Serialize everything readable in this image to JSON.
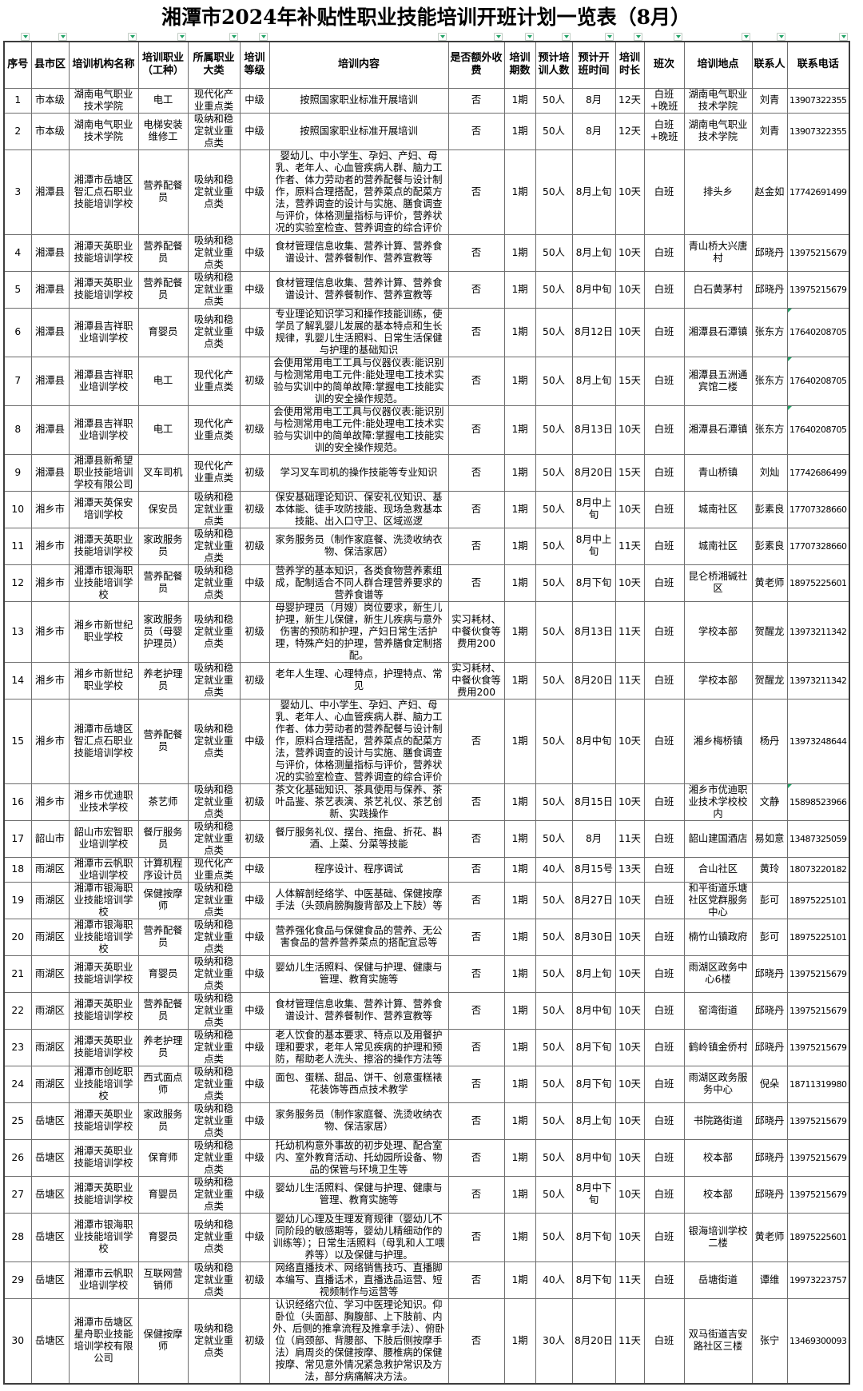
{
  "title": "湘潭市2024年补贴性职业技能培训开班计划一览表（8月）",
  "filter": {
    "icon": "filter-dropdown-arrow",
    "color": "#21a366"
  },
  "table": {
    "columns": [
      {
        "key": "seq",
        "label": "序号"
      },
      {
        "key": "district",
        "label": "县市区"
      },
      {
        "key": "institution",
        "label": "培训机构名称"
      },
      {
        "key": "occupation",
        "label": "培训职业（工种）"
      },
      {
        "key": "category",
        "label": "所属职业大类"
      },
      {
        "key": "level",
        "label": "培训等级"
      },
      {
        "key": "content",
        "label": "培训内容"
      },
      {
        "key": "extra_fee",
        "label": "是否额外收费"
      },
      {
        "key": "sessions",
        "label": "培训期数"
      },
      {
        "key": "trainees",
        "label": "预计培训人数"
      },
      {
        "key": "start_time",
        "label": "预计开班时间"
      },
      {
        "key": "duration",
        "label": "培训时长"
      },
      {
        "key": "shift",
        "label": "班次"
      },
      {
        "key": "location",
        "label": "培训地点"
      },
      {
        "key": "contact",
        "label": "联系人"
      },
      {
        "key": "phone",
        "label": "联系电话"
      }
    ],
    "phone_corner_indicator_rows": [
      "6",
      "7",
      "8",
      "16"
    ],
    "rows": [
      [
        "1",
        "市本级",
        "湖南电气职业技术学院",
        "电工",
        "现代化产业重点类",
        "中级",
        "按照国家职业标准开展培训",
        "否",
        "1期",
        "50人",
        "8月",
        "12天",
        "白班+晚班",
        "湖南电气职业技术学院",
        "刘青",
        "13907322355"
      ],
      [
        "2",
        "市本级",
        "湖南电气职业技术学院",
        "电梯安装维修工",
        "吸纳和稳定就业重点类",
        "中级",
        "按照国家职业标准开展培训",
        "否",
        "1期",
        "50人",
        "8月",
        "12天",
        "白班+晚班",
        "湖南电气职业技术学院",
        "刘青",
        "13907322355"
      ],
      [
        "3",
        "湘潭县",
        "湘潭市岳塘区智汇点石职业技能培训学校",
        "营养配餐员",
        "吸纳和稳定就业重点类",
        "中级",
        "婴幼儿、中小学生、孕妇、产妇、母乳、老年人、心血管疾病人群、脑力工作者、体力劳动者的营养配餐与设计制作，原料合理搭配，营养菜点的配菜方法，营养调查的设计与实施、膳食调查与评价，体格测量指标与评价，营养状况的实验室检查、营养调查的综合评价",
        "否",
        "1期",
        "50人",
        "8月上旬",
        "10天",
        "白班",
        "排头乡",
        "赵金如",
        "17742691499"
      ],
      [
        "4",
        "湘潭县",
        "湘潭天英职业技能培训学校",
        "营养配餐员",
        "吸纳和稳定就业重点类",
        "中级",
        "食材管理信息收集、营养计算、营养食谱设计、营养餐制作、营养宣教等",
        "否",
        "1期",
        "50人",
        "8月上旬",
        "10天",
        "白班",
        "青山桥大兴唐村",
        "邱晓丹",
        "13975215679"
      ],
      [
        "5",
        "湘潭县",
        "湘潭天英职业技能培训学校",
        "营养配餐员",
        "吸纳和稳定就业重点类",
        "中级",
        "食材管理信息收集、营养计算、营养食谱设计、营养餐制作、营养宣教等",
        "否",
        "1期",
        "50人",
        "8月中旬",
        "10天",
        "白班",
        "白石黄茅村",
        "邱晓丹",
        "13975215679"
      ],
      [
        "6",
        "湘潭县",
        "湘潭县吉祥职业培训学校",
        "育婴员",
        "吸纳和稳定就业重点类",
        "中级",
        "专业理论知识学习和操作技能训练，使学员了解乳婴儿发展的基本特点和生长规律，乳婴儿生活照料、日常生活保健与护理的基础知识",
        "否",
        "1期",
        "50人",
        "8月12日",
        "10天",
        "白班",
        "湘潭县石潭镇",
        "张东方",
        "17640208705"
      ],
      [
        "7",
        "湘潭县",
        "湘潭县吉祥职业培训学校",
        "电工",
        "现代化产业重点类",
        "初级",
        "会使用常用电工工具与仪器仪表:能识别与检测常用电工元件:能处理电工技术实验与实训中的简单故障:掌握电工技能实训的安全操作规范。",
        "否",
        "1期",
        "50人",
        "8月上旬",
        "15天",
        "白班",
        "湘潭县五洲通宾馆二楼",
        "张东方",
        "17640208705"
      ],
      [
        "8",
        "湘潭县",
        "湘潭县吉祥职业培训学校",
        "电工",
        "现代化产业重点类",
        "初级",
        "会使用常用电工工具与仪器仪表:能识别与检测常用电工元件:能处理电工技术实验与实训中的简单故障:掌握电工技能实训的安全操作规范。",
        "否",
        "1期",
        "50人",
        "8月13日",
        "10天",
        "白班",
        "湘潭县石潭镇",
        "张东方",
        "17640208705"
      ],
      [
        "9",
        "湘潭县",
        "湘潭县新希望职业技能培训学校有限公司",
        "叉车司机",
        "现代化产业重点类",
        "初级",
        "学习叉车司机的操作技能等专业知识",
        "否",
        "1期",
        "50人",
        "8月20日",
        "15天",
        "白班",
        "青山桥镇",
        "刘灿",
        "17742686499"
      ],
      [
        "10",
        "湘乡市",
        "湘潭天英保安培训学校",
        "保安员",
        "吸纳和稳定就业重点类",
        "初级",
        "保安基础理论知识、保安礼仪知识、基本体能、徒手攻防技能、现场急救基本技能、出入口守卫、区域巡逻",
        "否",
        "1期",
        "50人",
        "8月中上旬",
        "10天",
        "白班",
        "城南社区",
        "彭素良",
        "17707328660"
      ],
      [
        "11",
        "湘乡市",
        "湘潭天英职业技能培训学校",
        "家政服务员",
        "吸纳和稳定就业重点类",
        "初级",
        "家务服务员（制作家庭餐、洗烫收纳衣物、保洁家居）",
        "否",
        "1期",
        "50人",
        "8月中上旬",
        "11天",
        "白班",
        "城南社区",
        "彭素良",
        "17707328660"
      ],
      [
        "12",
        "湘乡市",
        "湘潭市银海职业技能培训学校",
        "营养配餐员",
        "吸纳和稳定就业重点类",
        "中级",
        "营养学的基本知识，各类食物营养素组成，配制适合不同人群合理营养要求的营养食谱等",
        "否",
        "1期",
        "50人",
        "8月下旬",
        "10天",
        "白班",
        "昆仑桥湘碱社区",
        "黄老师",
        "18975225601"
      ],
      [
        "13",
        "湘乡市",
        "湘乡市新世纪职业学校",
        "家政服务员（母婴护理员）",
        "吸纳和稳定就业重点类",
        "初级",
        "母婴护理员（月嫂）岗位要求，新生儿护理，新生儿保健，新生儿疾病与意外伤害的预防和护理，产妇日常生活护理，特殊产妇的护理，营养膳食定制搭配。",
        "实习耗材、中餐伙食等费用200",
        "1期",
        "50人",
        "8月13日",
        "11天",
        "白班",
        "学校本部",
        "贺醒龙",
        "13973211342"
      ],
      [
        "14",
        "湘乡市",
        "湘乡市新世纪职业学校",
        "养老护理员",
        "吸纳和稳定就业重点类",
        "初级",
        "老年人生理、心理特点，护理特点、常见",
        "实习耗材、中餐伙食等费用200",
        "1期",
        "50人",
        "8月20日",
        "11天",
        "白班",
        "学校本部",
        "贺醒龙",
        "13973211342"
      ],
      [
        "15",
        "湘乡市",
        "湘潭市岳塘区智汇点石职业技能培训学校",
        "营养配餐员",
        "吸纳和稳定就业重点类",
        "中级",
        "婴幼儿、中小学生、孕妇、产妇、母乳、老年人、心血管疾病人群、脑力工作者、体力劳动者的营养配餐与设计制作，原料合理搭配，营养菜点的配菜方法，营养调查的设计与实施、膳食调查与评价，体格测量指标与评价，营养状况的实验室检查、营养调查的综合评价",
        "否",
        "1期",
        "50人",
        "8月中旬",
        "10天",
        "白班",
        "湘乡梅桥镇",
        "杨丹",
        "13973248644"
      ],
      [
        "16",
        "湘乡市",
        "湘乡市优迪职业技术学校",
        "茶艺师",
        "吸纳和稳定就业重点类",
        "初级",
        "茶文化基础知识、茶具使用与保养、茶叶品鉴、茶艺表演、茶艺礼仪、茶艺创新、实践操作",
        "否",
        "1期",
        "50人",
        "8月15日",
        "10天",
        "白班",
        "湘乡市优迪职业技术学校校内",
        "文静",
        "15898523966"
      ],
      [
        "17",
        "韶山市",
        "韶山市宏智职业培训学校",
        "餐厅服务员",
        "吸纳和稳定就业重点类",
        "初级",
        "餐厅服务礼仪、摆台、拖盘、折花、斟酒、上菜、分菜等技能",
        "否",
        "1期",
        "50人",
        "8月",
        "11天",
        "白班",
        "韶山建国酒店",
        "易如意",
        "13487325059"
      ],
      [
        "18",
        "雨湖区",
        "湘潭市云帆职业培训学校",
        "计算机程序设计员",
        "现代化产业重点类",
        "中级",
        "程序设计、程序调试",
        "否",
        "1期",
        "40人",
        "8月15号",
        "13天",
        "白班",
        "合山社区",
        "黄玲",
        "18073220182"
      ],
      [
        "19",
        "雨湖区",
        "湘潭市银海职业技能培训学校",
        "保健按摩师",
        "吸纳和稳定就业重点类",
        "中级",
        "人体解剖经络学、中医基础、保健按摩手法（头颈肩膀胸腹背部及上下肢）等",
        "否",
        "1期",
        "50人",
        "8月27日",
        "10天",
        "白班",
        "和平街道乐塘社区党群服务中心",
        "彭可",
        "18975225101"
      ],
      [
        "20",
        "雨湖区",
        "湘潭市银海职业技能培训学校",
        "营养配餐员",
        "吸纳和稳定就业重点类",
        "中级",
        "营养强化食品与保健食品的营养、无公害食品的营养营养菜点的搭配宜忌等",
        "否",
        "1期",
        "50人",
        "8月30日",
        "10天",
        "白班",
        "楠竹山镇政府",
        "彭可",
        "18975225101"
      ],
      [
        "21",
        "雨湖区",
        "湘潭天英职业技能培训学校",
        "育婴员",
        "吸纳和稳定就业重点类",
        "中级",
        "婴幼儿生活照料、保健与护理、健康与管理、教育实施等",
        "否",
        "1期",
        "50人",
        "8月上旬",
        "10天",
        "白班",
        "雨湖区政务中心6楼",
        "邱晓丹",
        "13975215679"
      ],
      [
        "22",
        "雨湖区",
        "湘潭天英职业技能培训学校",
        "营养配餐员",
        "吸纳和稳定就业重点类",
        "中级",
        "食材管理信息收集、营养计算、营养食谱设计、营养餐制作、营养宣教等",
        "否",
        "1期",
        "50人",
        "8月中旬",
        "10天",
        "白班",
        "窑湾街道",
        "邱晓丹",
        "13975215679"
      ],
      [
        "23",
        "雨湖区",
        "湘潭天英职业技能培训学校",
        "养老护理员",
        "吸纳和稳定就业重点类",
        "中级",
        "老人饮食的基本要求、特点以及用餐护理和要求，老年人常见疾病的护理和预防，帮助老人洗头、擦浴的操作方法等",
        "否",
        "1期",
        "50人",
        "8月下旬",
        "10天",
        "白班",
        "鹤岭镇金侨村",
        "邱晓丹",
        "13975215679"
      ],
      [
        "24",
        "雨湖区",
        "湘潭市创屹职业技能培训学校",
        "西式面点师",
        "吸纳和稳定就业重点类",
        "中级",
        "面包、蛋糕、甜品、饼干、创意蛋糕裱花装饰等西点技术教学",
        "否",
        "1期",
        "50人",
        "8月下旬",
        "10天",
        "白班",
        "雨湖区政务服务中心",
        "倪朵",
        "18711319980"
      ],
      [
        "25",
        "岳塘区",
        "湘潭天英职业技能培训学校",
        "家政服务员",
        "吸纳和稳定就业重点类",
        "中级",
        "家务服务员（制作家庭餐、洗烫收纳衣物、保洁家居）",
        "否",
        "1期",
        "50人",
        "8月上旬",
        "10天",
        "白班",
        "书院路街道",
        "邱晓丹",
        "13975215679"
      ],
      [
        "26",
        "岳塘区",
        "湘潭天英职业技能培训学校",
        "保育师",
        "吸纳和稳定就业重点类",
        "中级",
        "托幼机构意外事故的初步处理、配合室内、室外教育活动、托幼园所设备、物品的保管与环境卫生等",
        "否",
        "1期",
        "50人",
        "8月中旬",
        "10天",
        "白班",
        "校本部",
        "邱晓丹",
        "13975215679"
      ],
      [
        "27",
        "岳塘区",
        "湘潭天英职业技能培训学校",
        "育婴员",
        "吸纳和稳定就业重点类",
        "中级",
        "婴幼儿生活照料、保健与护理、健康与管理、教育实施等",
        "否",
        "1期",
        "50人",
        "8月中下旬",
        "10天",
        "白班",
        "校本部",
        "邱晓丹",
        "13975215679"
      ],
      [
        "28",
        "岳塘区",
        "湘潭市银海职业技能培训学校",
        "育婴员",
        "吸纳和稳定就业重点类",
        "中级",
        "婴幼儿心理及生理发育规律（婴幼儿不同阶段的敏感期等，婴幼儿精细动作的训练等）；日常生活照料（母乳和人工喂养等）以及保健与护理。",
        "否",
        "1期",
        "50人",
        "8月下旬",
        "10天",
        "白班",
        "银海培训学校二楼",
        "黄老师",
        "18975225601"
      ],
      [
        "29",
        "岳塘区",
        "湘潭市云帆职业培训学校",
        "互联网营销师",
        "吸纳和稳定就业重点类",
        "初级",
        "网络直播技术、网络销售技巧、直播脚本编写、直播话术，直播选品运营、短视频制作与运营等",
        "否",
        "1期",
        "40人",
        "8月下旬",
        "11天",
        "白班",
        "岳塘街道",
        "谭维",
        "19973223757"
      ],
      [
        "30",
        "岳塘区",
        "湘潭市岳塘区星舟职业技能培训学校有限公司",
        "保健按摩师",
        "吸纳和稳定就业重点类",
        "初级",
        "认识经络穴位、学习中医理论知识。仰卧位（头面部、胸腹部、上下肢前、内外、后侧的推拿流程及推拿手法）、俯卧位（肩颈部、背腰部、下肢后侧按摩手法）肩周炎的保健按摩、腰椎病的保健按摩、常见意外情况紧急救护常识及方法，部分病痛解决方法。",
        "否",
        "1期",
        "30人",
        "8月20日",
        "11天",
        "白班",
        "双马街道吉安路社区三楼",
        "张宁",
        "13469300093"
      ]
    ]
  }
}
